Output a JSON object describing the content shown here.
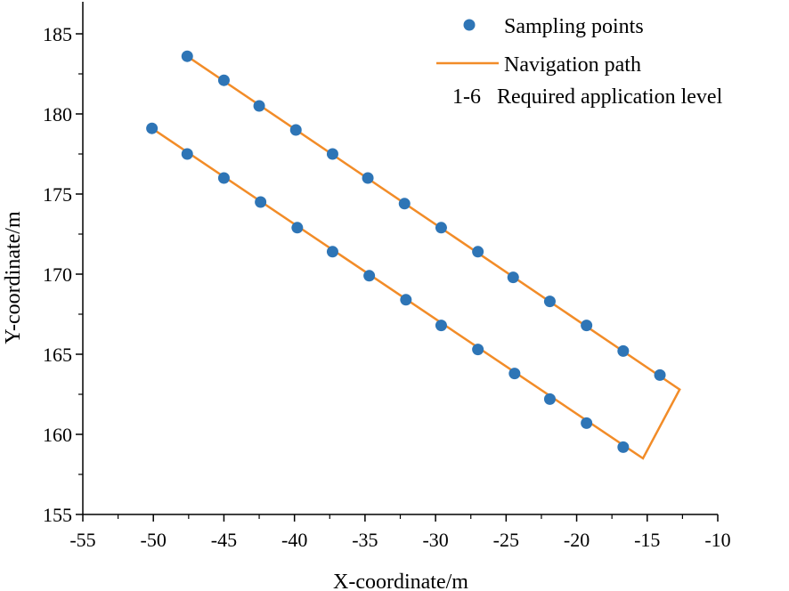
{
  "chart_data": {
    "type": "scatter",
    "xlabel": "X-coordinate/m",
    "ylabel": "Y-coordinate/m",
    "xlim": [
      -55,
      -10
    ],
    "ylim": [
      155,
      187
    ],
    "xticks": [
      -55,
      -50,
      -45,
      -40,
      -35,
      -30,
      -25,
      -20,
      -15,
      -10
    ],
    "yticks": [
      155,
      160,
      165,
      170,
      175,
      180,
      185
    ],
    "grid": false,
    "legend_position": "top-right",
    "colors": {
      "points": "#2e75b6",
      "path": "#f28c28"
    },
    "legend": [
      {
        "symbol": "circle",
        "label": "Sampling points"
      },
      {
        "symbol": "line",
        "label": "Navigation path"
      },
      {
        "symbol": "text",
        "label": "1-6   Required application level"
      }
    ],
    "series": [
      {
        "name": "Sampling points",
        "points": [
          [
            -47.6,
            183.6
          ],
          [
            -45.0,
            182.1
          ],
          [
            -42.5,
            180.5
          ],
          [
            -39.9,
            179.0
          ],
          [
            -37.3,
            177.5
          ],
          [
            -34.8,
            176.0
          ],
          [
            -32.2,
            174.4
          ],
          [
            -29.6,
            172.9
          ],
          [
            -27.0,
            171.4
          ],
          [
            -24.5,
            169.8
          ],
          [
            -21.9,
            168.3
          ],
          [
            -19.3,
            166.8
          ],
          [
            -16.7,
            165.2
          ],
          [
            -14.1,
            163.7
          ],
          [
            -50.1,
            179.1
          ],
          [
            -47.6,
            177.5
          ],
          [
            -45.0,
            176.0
          ],
          [
            -42.4,
            174.5
          ],
          [
            -39.8,
            172.9
          ],
          [
            -37.3,
            171.4
          ],
          [
            -34.7,
            169.9
          ],
          [
            -32.1,
            168.4
          ],
          [
            -29.6,
            166.8
          ],
          [
            -27.0,
            165.3
          ],
          [
            -24.4,
            163.8
          ],
          [
            -21.9,
            162.2
          ],
          [
            -19.3,
            160.7
          ],
          [
            -16.7,
            159.2
          ]
        ]
      },
      {
        "name": "Navigation path",
        "points": [
          [
            -47.6,
            183.6
          ],
          [
            -12.7,
            162.8
          ],
          [
            -15.3,
            158.5
          ],
          [
            -50.1,
            179.1
          ]
        ]
      }
    ]
  }
}
